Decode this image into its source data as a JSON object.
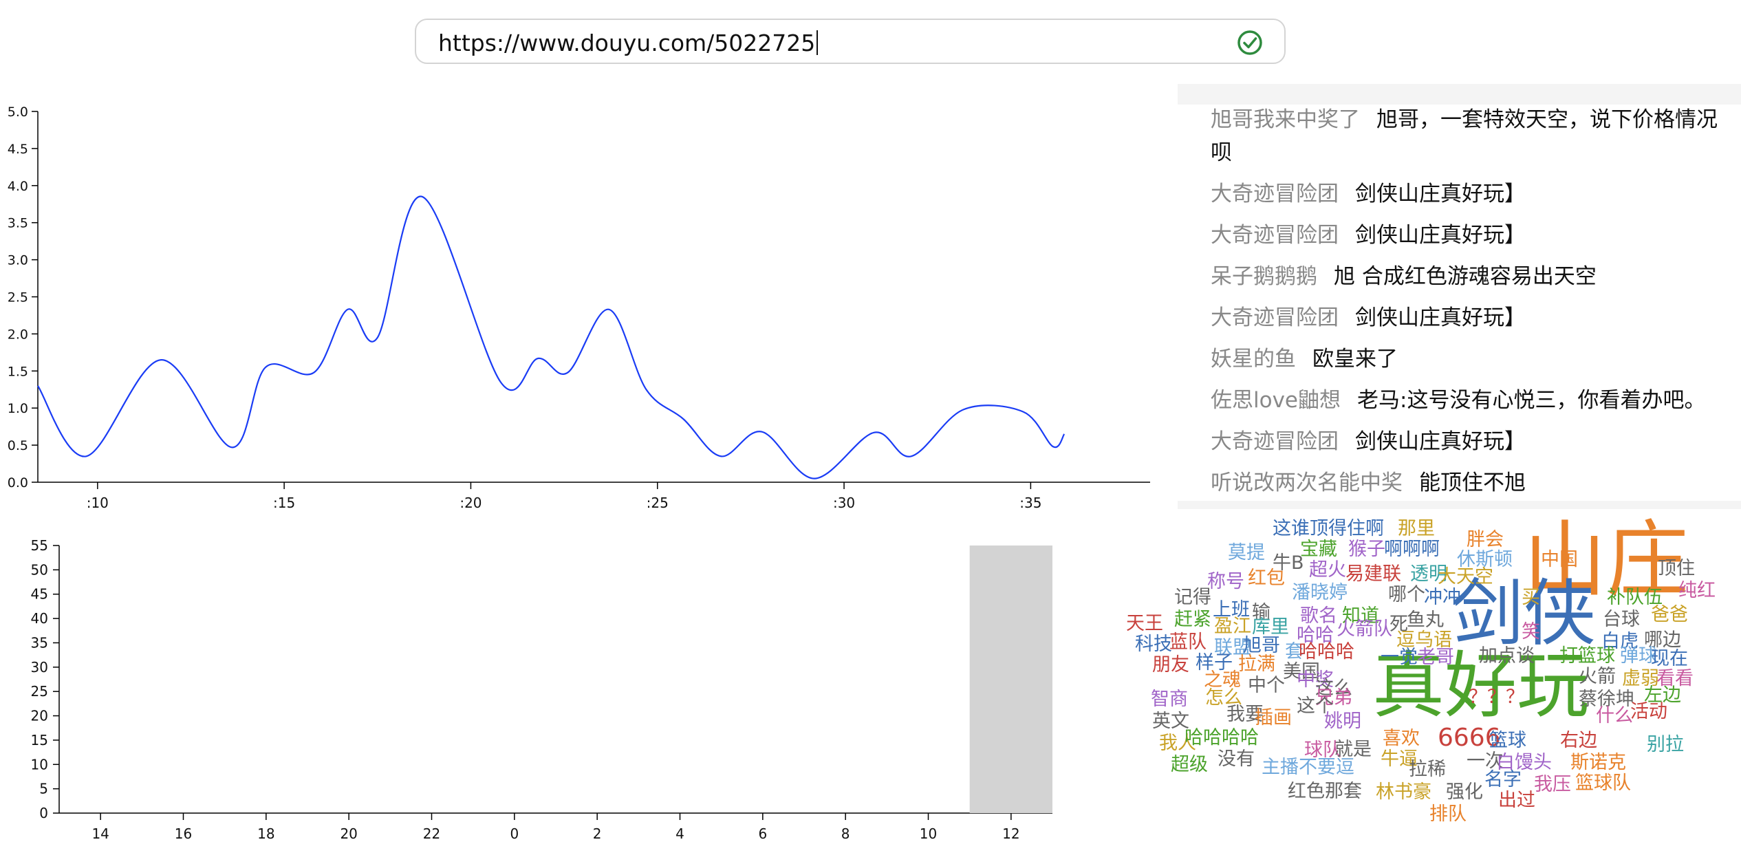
{
  "url_bar": {
    "value": "https://www.douyu.com/5022725",
    "status_icon": "check-circle-icon",
    "status_color": "#2e8b3e"
  },
  "line_chart": {
    "y_ticks": [
      "0.0",
      "0.5",
      "1.0",
      "1.5",
      "2.0",
      "2.5",
      "3.0",
      "3.5",
      "4.0",
      "4.5",
      "5.0"
    ],
    "x_ticks": [
      ":10",
      ":15",
      ":20",
      ":25",
      ":30",
      ":35"
    ]
  },
  "bar_chart": {
    "y_ticks": [
      "0",
      "5",
      "10",
      "15",
      "20",
      "25",
      "30",
      "35",
      "40",
      "45",
      "50",
      "55"
    ],
    "x_ticks": [
      "14",
      "16",
      "18",
      "20",
      "22",
      "0",
      "2",
      "4",
      "6",
      "8",
      "10",
      "12"
    ]
  },
  "chart_data": [
    {
      "type": "line",
      "color": "#1a3cf5",
      "ylim": [
        0,
        5
      ],
      "x_tick_values": [
        10,
        15,
        20,
        25,
        30,
        35
      ],
      "x": [
        8.4,
        9.7,
        11.7,
        13.6,
        14.5,
        15.8,
        16.7,
        17.5,
        18.7,
        20.8,
        21.8,
        22.6,
        23.7,
        24.7,
        25.7,
        26.7,
        27.8,
        29.2,
        30.8,
        31.8,
        33.2,
        34.8,
        35.6,
        35.9
      ],
      "y": [
        1.3,
        0.35,
        1.65,
        0.47,
        1.55,
        1.48,
        2.33,
        1.95,
        3.85,
        1.35,
        1.67,
        1.48,
        2.33,
        1.25,
        0.85,
        0.35,
        0.68,
        0.05,
        0.67,
        0.35,
        0.98,
        0.95,
        0.48,
        0.65
      ]
    },
    {
      "type": "bar",
      "color": "#d3d3d3",
      "ylim": [
        0,
        55
      ],
      "categories": [
        "14",
        "16",
        "18",
        "20",
        "22",
        "0",
        "2",
        "4",
        "6",
        "8",
        "10",
        "12"
      ],
      "bars": [
        {
          "hour_index_start": 10.5,
          "hour_index_end": 11.5,
          "value": 55
        }
      ]
    }
  ],
  "comments": [
    {
      "user": "旭哥我来中奖了",
      "text": "旭哥，一套特效天空，说下价格情况呗"
    },
    {
      "user": "大奇迹冒险团",
      "text": "剑侠山庄真好玩】"
    },
    {
      "user": "大奇迹冒险团",
      "text": "剑侠山庄真好玩】"
    },
    {
      "user": "呆子鹅鹅鹅",
      "text": "旭 合成红色游魂容易出天空"
    },
    {
      "user": "大奇迹冒险团",
      "text": "剑侠山庄真好玩】"
    },
    {
      "user": "妖星的鱼",
      "text": "欧皇来了"
    },
    {
      "user": "佐思love鼬想",
      "text": "老马:这号没有心悦三，你看着办吧。"
    },
    {
      "user": "大奇迹冒险团",
      "text": "剑侠山庄真好玩】"
    },
    {
      "user": "听说改两次名能中奖",
      "text": "能顶住不旭"
    }
  ],
  "wordcloud": [
    {
      "t": "山庄",
      "c": "#e8822b"
    },
    {
      "t": "剑侠",
      "c": "#3b6fb6"
    },
    {
      "t": "真好玩",
      "c": "#4ca32c"
    },
    {
      "t": "6666",
      "c": "#c8413c"
    },
    {
      "t": "这谁顶得住啊",
      "c": "#3b6fb6"
    },
    {
      "t": "那里",
      "c": "#c9a227"
    },
    {
      "t": "胖会",
      "c": "#e8822b"
    },
    {
      "t": "莫提",
      "c": "#6fa8dc"
    },
    {
      "t": "宝藏",
      "c": "#4ca32c"
    },
    {
      "t": "猴子",
      "c": "#a064c8"
    },
    {
      "t": "啊啊啊",
      "c": "#3b6fb6"
    },
    {
      "t": "中国",
      "c": "#e8822b"
    },
    {
      "t": "牛B",
      "c": "#666666"
    },
    {
      "t": "超火",
      "c": "#a064c8"
    },
    {
      "t": "休斯顿",
      "c": "#6fa8dc"
    },
    {
      "t": "顶住",
      "c": "#666666"
    },
    {
      "t": "称号",
      "c": "#a064c8"
    },
    {
      "t": "红包",
      "c": "#e8822b"
    },
    {
      "t": "易建联",
      "c": "#c8413c"
    },
    {
      "t": "透明",
      "c": "#3aa3a3"
    },
    {
      "t": "大天空",
      "c": "#c9a227"
    },
    {
      "t": "纯红",
      "c": "#c85aa0"
    },
    {
      "t": "记得",
      "c": "#666666"
    },
    {
      "t": "潘晓婷",
      "c": "#6fa8dc"
    },
    {
      "t": "哪个",
      "c": "#666666"
    },
    {
      "t": "冲冲",
      "c": "#3b6fb6"
    },
    {
      "t": "买",
      "c": "#c9a227"
    },
    {
      "t": "补队伍",
      "c": "#4ca32c"
    },
    {
      "t": "上班",
      "c": "#3b6fb6"
    },
    {
      "t": "输",
      "c": "#666666"
    },
    {
      "t": "歌名",
      "c": "#a064c8"
    },
    {
      "t": "知道",
      "c": "#4ca32c"
    },
    {
      "t": "台球",
      "c": "#666666"
    },
    {
      "t": "爸爸",
      "c": "#c9a227"
    },
    {
      "t": "天王",
      "c": "#c8413c"
    },
    {
      "t": "赶紧",
      "c": "#4ca32c"
    },
    {
      "t": "盈江",
      "c": "#c9a227"
    },
    {
      "t": "库里",
      "c": "#3aa3a3"
    },
    {
      "t": "火箭队",
      "c": "#a064c8"
    },
    {
      "t": "死",
      "c": "#666666"
    },
    {
      "t": "鱼丸",
      "c": "#666666"
    },
    {
      "t": "笑",
      "c": "#c85aa0"
    },
    {
      "t": "白虎",
      "c": "#3b6fb6"
    },
    {
      "t": "哪边",
      "c": "#666666"
    },
    {
      "t": "哈哈",
      "c": "#a064c8"
    },
    {
      "t": "逗乌语",
      "c": "#c9a227"
    },
    {
      "t": "科技",
      "c": "#3b6fb6"
    },
    {
      "t": "蓝队",
      "c": "#c8413c"
    },
    {
      "t": "联盟",
      "c": "#6fa8dc"
    },
    {
      "t": "旭哥",
      "c": "#3b6fb6"
    },
    {
      "t": "套",
      "c": "#6fa8dc"
    },
    {
      "t": "哈哈哈",
      "c": "#c8413c"
    },
    {
      "t": "一觉",
      "c": "#3b6fb6"
    },
    {
      "t": "老哥",
      "c": "#a064c8"
    },
    {
      "t": "加点谈",
      "c": "#666666"
    },
    {
      "t": "打篮球",
      "c": "#4ca32c"
    },
    {
      "t": "弹球",
      "c": "#6fa8dc"
    },
    {
      "t": "现在",
      "c": "#3b6fb6"
    },
    {
      "t": "朋友",
      "c": "#c8413c"
    },
    {
      "t": "样子",
      "c": "#3b6fb6"
    },
    {
      "t": "拉满",
      "c": "#e8822b"
    },
    {
      "t": "美国",
      "c": "#666666"
    },
    {
      "t": "火箭",
      "c": "#666666"
    },
    {
      "t": "虚弱",
      "c": "#c9a227"
    },
    {
      "t": "看看",
      "c": "#c85aa0"
    },
    {
      "t": "之魂",
      "c": "#e8822b"
    },
    {
      "t": "中个",
      "c": "#666666"
    },
    {
      "t": "中奖",
      "c": "#a064c8"
    },
    {
      "t": "这么",
      "c": "#666666"
    },
    {
      "t": "左边",
      "c": "#4ca32c"
    },
    {
      "t": "智商",
      "c": "#a064c8"
    },
    {
      "t": "怎么",
      "c": "#c9a227"
    },
    {
      "t": "兄弟",
      "c": "#c85aa0"
    },
    {
      "t": "？？？",
      "c": "#c8413c"
    },
    {
      "t": "蔡徐坤",
      "c": "#666666"
    },
    {
      "t": "什么",
      "c": "#c85aa0"
    },
    {
      "t": "活动",
      "c": "#c8413c"
    },
    {
      "t": "我要",
      "c": "#666666"
    },
    {
      "t": "插画",
      "c": "#e8822b"
    },
    {
      "t": "这个",
      "c": "#666666"
    },
    {
      "t": "英文",
      "c": "#666666"
    },
    {
      "t": "姚明",
      "c": "#a064c8"
    },
    {
      "t": "喜欢",
      "c": "#e8822b"
    },
    {
      "t": "篮球",
      "c": "#3b6fb6"
    },
    {
      "t": "右边",
      "c": "#c8413c"
    },
    {
      "t": "别拉",
      "c": "#3aa3a3"
    },
    {
      "t": "我人",
      "c": "#c9a227"
    },
    {
      "t": "哈哈哈哈",
      "c": "#4ca32c"
    },
    {
      "t": "球队",
      "c": "#c85aa0"
    },
    {
      "t": "就是",
      "c": "#666666"
    },
    {
      "t": "一次",
      "c": "#666666"
    },
    {
      "t": "白馒头",
      "c": "#a064c8"
    },
    {
      "t": "斯诺克",
      "c": "#e8822b"
    },
    {
      "t": "超级",
      "c": "#4ca32c"
    },
    {
      "t": "没有",
      "c": "#666666"
    },
    {
      "t": "主播不要逗",
      "c": "#6fa8dc"
    },
    {
      "t": "牛逼",
      "c": "#c9a227"
    },
    {
      "t": "拉稀",
      "c": "#666666"
    },
    {
      "t": "名字",
      "c": "#3b6fb6"
    },
    {
      "t": "我压",
      "c": "#c85aa0"
    },
    {
      "t": "篮球队",
      "c": "#e8822b"
    },
    {
      "t": "红色那套",
      "c": "#666666"
    },
    {
      "t": "林书豪",
      "c": "#c9a227"
    },
    {
      "t": "强化",
      "c": "#666666"
    },
    {
      "t": "出过",
      "c": "#c8413c"
    },
    {
      "t": "排队",
      "c": "#e8822b"
    }
  ]
}
